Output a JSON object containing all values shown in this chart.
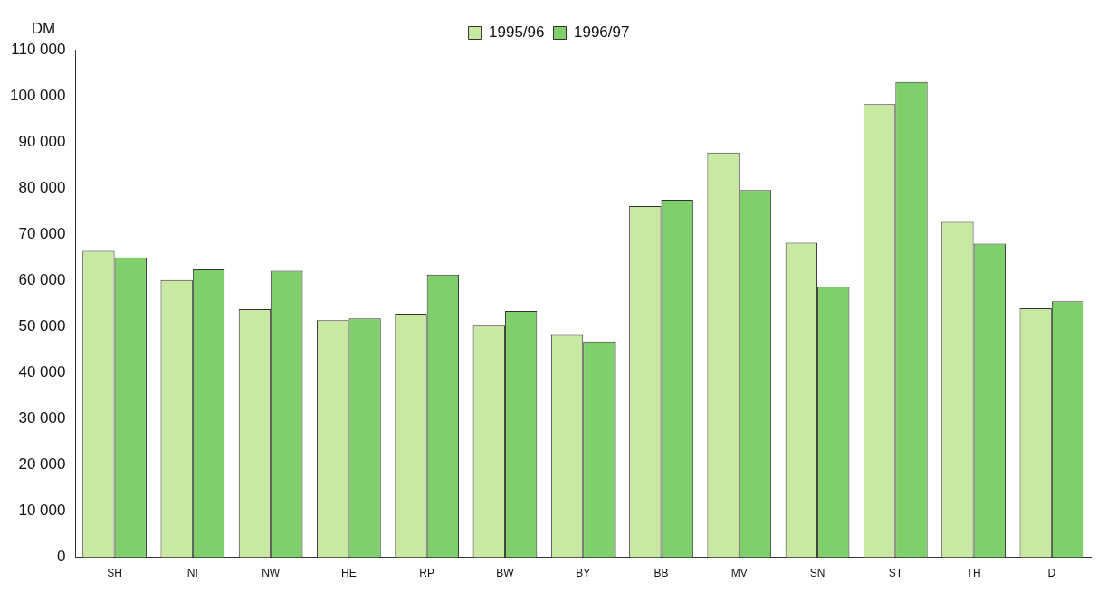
{
  "chart_data": {
    "type": "bar",
    "ylabel": "DM",
    "categories": [
      "SH",
      "NI",
      "NW",
      "HE",
      "RP",
      "BW",
      "BY",
      "BB",
      "MV",
      "SN",
      "ST",
      "TH",
      "D"
    ],
    "series": [
      {
        "name": "1995/96",
        "color": "#c9e8a2",
        "values": [
          66400,
          60100,
          53800,
          51400,
          52800,
          50200,
          48200,
          76100,
          87700,
          68200,
          98200,
          72700,
          54000
        ]
      },
      {
        "name": "1996/97",
        "color": "#7fcf6a",
        "values": [
          65000,
          62400,
          62100,
          51800,
          61300,
          53400,
          46800,
          77500,
          79600,
          58700,
          103000,
          68000,
          55500
        ]
      }
    ],
    "ylim": [
      0,
      110000
    ],
    "yticks": [
      0,
      {
        "value": 10000,
        "label": "10 000"
      },
      {
        "value": 20000,
        "label": "20 000"
      },
      {
        "value": 30000,
        "label": "30 000"
      },
      {
        "value": 40000,
        "label": "40 000"
      },
      {
        "value": 50000,
        "label": "50 000"
      },
      {
        "value": 60000,
        "label": "60 000"
      },
      {
        "value": 70000,
        "label": "70 000"
      },
      {
        "value": 80000,
        "label": "80 000"
      },
      {
        "value": 90000,
        "label": "90 000"
      },
      {
        "value": 100000,
        "label": "100 000"
      },
      {
        "value": 110000,
        "label": "110 000"
      }
    ],
    "grid": false,
    "legend": "top"
  }
}
